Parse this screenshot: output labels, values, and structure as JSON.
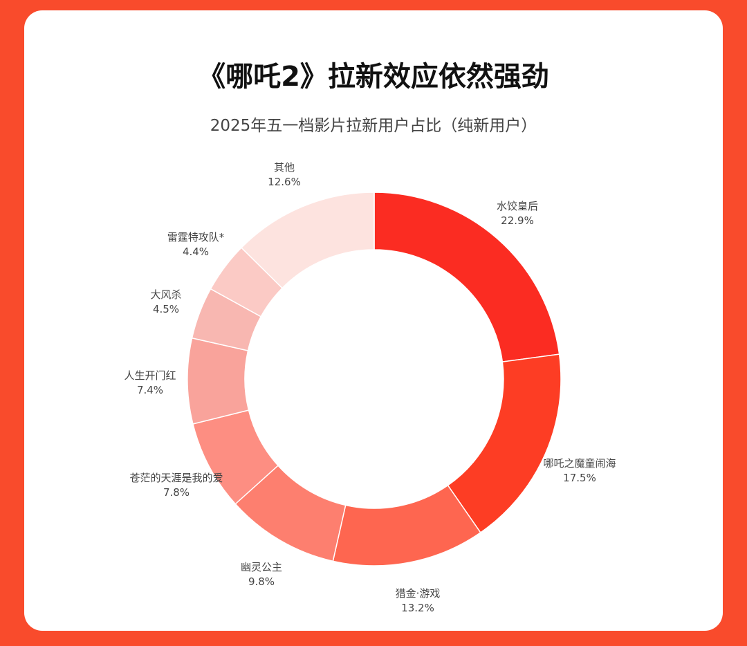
{
  "chart_data": {
    "type": "pie",
    "style": "donut",
    "title": "《哪吒2》拉新效应依然强劲",
    "subtitle": "2025年五一档影片拉新用户占比（纯新用户）",
    "categories": [
      "水饺皇后",
      "哪吒之魔童闹海",
      "猎金·游戏",
      "幽灵公主",
      "苍茫的天涯是我的爱",
      "人生开门红",
      "大风杀",
      "雷霆特攻队*",
      "其他"
    ],
    "values": [
      22.9,
      17.5,
      13.2,
      9.8,
      7.8,
      7.4,
      4.5,
      4.4,
      12.6
    ],
    "value_labels": [
      "22.9%",
      "17.5%",
      "13.2%",
      "9.8%",
      "7.8%",
      "7.4%",
      "4.5%",
      "4.4%",
      "12.6%"
    ],
    "colors": [
      "#fb2c22",
      "#fd3d24",
      "#fe6650",
      "#fd7f6f",
      "#fd8e82",
      "#f9a39b",
      "#f8b7b1",
      "#fbcac5",
      "#fde3df"
    ],
    "unit": "%",
    "start": "top",
    "direction": "clockwise",
    "legend": "none"
  },
  "theme": {
    "background": "#f94b2c",
    "card": "#ffffff"
  }
}
